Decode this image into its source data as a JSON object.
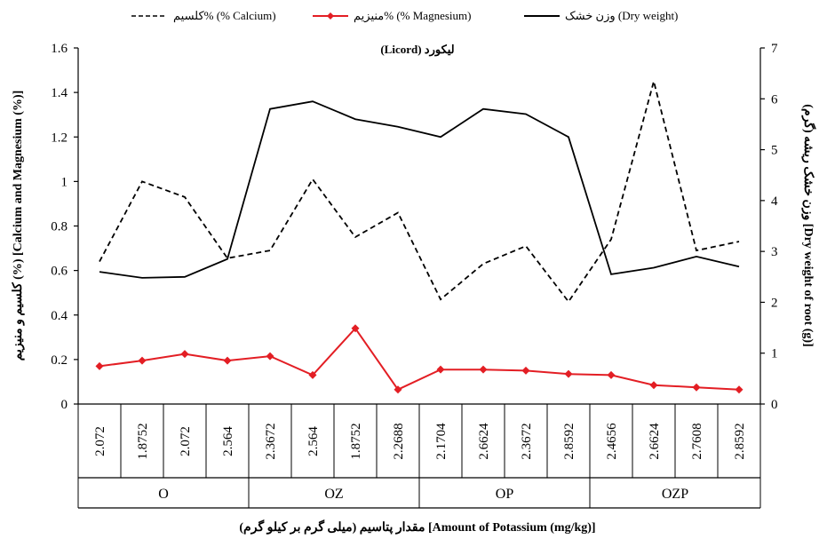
{
  "chart_data": {
    "type": "line",
    "title": "(Licord) لیکورد",
    "xlabel": "مقدار پتاسیم (میلی گرم بر کیلو گرم) [Amount of Potassium (mg/kg)]",
    "ylabel_left": "کلسیم و منیزیم (%) [Calcium and Magnesium (%)]",
    "ylabel_right": "وزن خشک ریشه (گرم) [Dry weight of root (g)]",
    "ylim_left": [
      0,
      1.6
    ],
    "ylim_right": [
      0,
      7
    ],
    "yticks_left": [
      "0",
      "0.2",
      "0.4",
      "0.6",
      "0.8",
      "1",
      "1.2",
      "1.4",
      "1.6"
    ],
    "yticks_right": [
      "0",
      "1",
      "2",
      "3",
      "4",
      "5",
      "6",
      "7"
    ],
    "categories": [
      "2.072",
      "1.8752",
      "2.072",
      "2.564",
      "2.3672",
      "2.564",
      "1.8752",
      "2.2688",
      "2.1704",
      "2.6624",
      "2.3672",
      "2.8592",
      "2.4656",
      "2.6624",
      "2.7608",
      "2.8592"
    ],
    "groups": [
      {
        "label": "O",
        "count": 4
      },
      {
        "label": "OZ",
        "count": 4
      },
      {
        "label": "OP",
        "count": 4
      },
      {
        "label": "OZP",
        "count": 4
      }
    ],
    "series": [
      {
        "name": "کلسیم% (% Calcium)",
        "axis": "left",
        "style": "dashed",
        "color": "#000000",
        "values": [
          0.64,
          1.0,
          0.93,
          0.655,
          0.69,
          1.01,
          0.75,
          0.86,
          0.47,
          0.63,
          0.71,
          0.46,
          0.74,
          1.45,
          0.69,
          0.73
        ]
      },
      {
        "name": "منیزیم% (% Magnesium)",
        "axis": "left",
        "style": "solid-diamond",
        "color": "#e31e24",
        "values": [
          0.17,
          0.195,
          0.225,
          0.195,
          0.215,
          0.13,
          0.34,
          0.065,
          0.155,
          0.155,
          0.15,
          0.135,
          0.13,
          0.085,
          0.075,
          0.065
        ]
      },
      {
        "name": "وزن خشک (Dry weight)",
        "axis": "right",
        "style": "solid",
        "color": "#000000",
        "values": [
          2.6,
          2.48,
          2.5,
          2.85,
          5.8,
          5.95,
          5.6,
          5.45,
          5.25,
          5.8,
          5.7,
          5.25,
          2.55,
          2.68,
          2.9,
          2.7
        ]
      }
    ],
    "legend_position": "top",
    "grid": false
  }
}
